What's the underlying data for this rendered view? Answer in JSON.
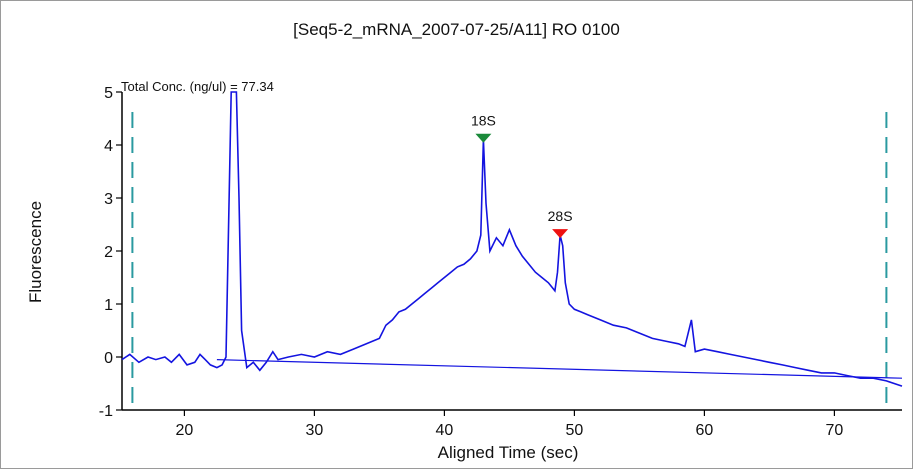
{
  "chart_data": {
    "type": "line",
    "title": "[Seq5-2_mRNA_2007-07-25/A11] RO 0100",
    "xlabel": "Aligned Time (sec)",
    "ylabel": "Fluorescence",
    "annotation": "Total Conc. (ng/ul) = 77.34",
    "xlim": [
      15.2,
      75.2
    ],
    "ylim": [
      -1,
      5
    ],
    "xticks": [
      20,
      30,
      40,
      50,
      60,
      70
    ],
    "yticks": [
      -1,
      0,
      1,
      2,
      3,
      4,
      5
    ],
    "grid": false,
    "colors": {
      "trace": "#1414e0",
      "markers": "#2a9aa0",
      "peak18S": "#1a8a3a",
      "peak28S": "#ee1111",
      "frame": "#9a9a9a"
    },
    "markers_x": [
      16,
      74
    ],
    "peaks": [
      {
        "label": "18S",
        "x": 43.0,
        "y": 4.1,
        "color": "#1a8a3a"
      },
      {
        "label": "28S",
        "x": 48.9,
        "y": 2.3,
        "color": "#ee1111"
      }
    ],
    "baseline": [
      [
        22.5,
        -0.05
      ],
      [
        75.2,
        -0.4
      ]
    ],
    "series": [
      {
        "values": [
          [
            15.2,
            -0.05
          ],
          [
            15.8,
            0.05
          ],
          [
            16.5,
            -0.1
          ],
          [
            17.2,
            0.0
          ],
          [
            17.8,
            -0.05
          ],
          [
            18.5,
            0.0
          ],
          [
            19.0,
            -0.1
          ],
          [
            19.6,
            0.05
          ],
          [
            20.2,
            -0.15
          ],
          [
            20.8,
            -0.1
          ],
          [
            21.2,
            0.05
          ],
          [
            21.6,
            -0.05
          ],
          [
            22.0,
            -0.15
          ],
          [
            22.5,
            -0.2
          ],
          [
            22.9,
            -0.15
          ],
          [
            23.2,
            0.0
          ],
          [
            23.4,
            2.5
          ],
          [
            23.6,
            5.0
          ],
          [
            24.0,
            5.0
          ],
          [
            24.2,
            3.0
          ],
          [
            24.4,
            0.5
          ],
          [
            24.8,
            -0.2
          ],
          [
            25.3,
            -0.1
          ],
          [
            25.8,
            -0.25
          ],
          [
            26.3,
            -0.1
          ],
          [
            26.8,
            0.1
          ],
          [
            27.2,
            -0.05
          ],
          [
            28.0,
            0.0
          ],
          [
            29.0,
            0.05
          ],
          [
            30.0,
            0.0
          ],
          [
            31.0,
            0.1
          ],
          [
            32.0,
            0.05
          ],
          [
            33.0,
            0.15
          ],
          [
            34.0,
            0.25
          ],
          [
            35.0,
            0.35
          ],
          [
            35.5,
            0.6
          ],
          [
            36.0,
            0.7
          ],
          [
            36.5,
            0.85
          ],
          [
            37.0,
            0.9
          ],
          [
            37.5,
            1.0
          ],
          [
            38.0,
            1.1
          ],
          [
            38.5,
            1.2
          ],
          [
            39.0,
            1.3
          ],
          [
            39.5,
            1.4
          ],
          [
            40.0,
            1.5
          ],
          [
            40.5,
            1.6
          ],
          [
            41.0,
            1.7
          ],
          [
            41.5,
            1.75
          ],
          [
            42.0,
            1.85
          ],
          [
            42.5,
            2.0
          ],
          [
            42.8,
            2.3
          ],
          [
            43.0,
            4.1
          ],
          [
            43.2,
            2.9
          ],
          [
            43.5,
            2.0
          ],
          [
            44.0,
            2.25
          ],
          [
            44.5,
            2.1
          ],
          [
            45.0,
            2.4
          ],
          [
            45.5,
            2.1
          ],
          [
            46.0,
            1.9
          ],
          [
            46.5,
            1.75
          ],
          [
            47.0,
            1.6
          ],
          [
            47.5,
            1.5
          ],
          [
            48.0,
            1.4
          ],
          [
            48.5,
            1.25
          ],
          [
            48.7,
            1.6
          ],
          [
            48.9,
            2.3
          ],
          [
            49.1,
            2.1
          ],
          [
            49.3,
            1.4
          ],
          [
            49.6,
            1.0
          ],
          [
            50.0,
            0.9
          ],
          [
            50.5,
            0.85
          ],
          [
            51.0,
            0.8
          ],
          [
            52.0,
            0.7
          ],
          [
            53.0,
            0.6
          ],
          [
            54.0,
            0.55
          ],
          [
            55.0,
            0.45
          ],
          [
            56.0,
            0.35
          ],
          [
            57.0,
            0.3
          ],
          [
            58.0,
            0.25
          ],
          [
            58.5,
            0.2
          ],
          [
            59.0,
            0.7
          ],
          [
            59.3,
            0.1
          ],
          [
            60.0,
            0.15
          ],
          [
            61.0,
            0.1
          ],
          [
            62.0,
            0.05
          ],
          [
            63.0,
            0.0
          ],
          [
            64.0,
            -0.05
          ],
          [
            65.0,
            -0.1
          ],
          [
            66.0,
            -0.15
          ],
          [
            67.0,
            -0.2
          ],
          [
            68.0,
            -0.25
          ],
          [
            69.0,
            -0.3
          ],
          [
            70.0,
            -0.3
          ],
          [
            71.0,
            -0.35
          ],
          [
            72.0,
            -0.4
          ],
          [
            73.0,
            -0.4
          ],
          [
            74.0,
            -0.45
          ],
          [
            75.2,
            -0.55
          ]
        ]
      }
    ]
  }
}
